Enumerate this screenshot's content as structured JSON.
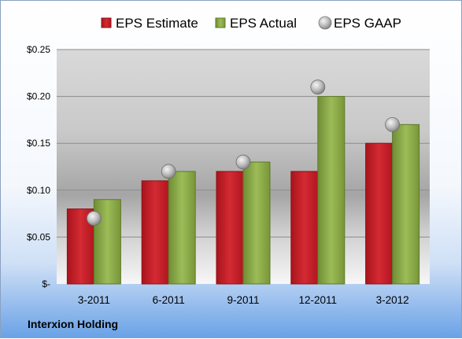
{
  "company": "Interxion Holding",
  "chart_data": {
    "type": "bar",
    "categories": [
      "3-2011",
      "6-2011",
      "9-2011",
      "12-2011",
      "3-2012"
    ],
    "series": [
      {
        "name": "EPS Estimate",
        "type": "bar",
        "color": "#c8202a",
        "values": [
          0.08,
          0.11,
          0.12,
          0.12,
          0.15
        ]
      },
      {
        "name": "EPS Actual",
        "type": "bar",
        "color": "#8eae4a",
        "values": [
          0.09,
          0.12,
          0.13,
          0.2,
          0.17
        ]
      },
      {
        "name": "EPS GAAP",
        "type": "marker",
        "color": "#b8b8b8",
        "values": [
          0.07,
          0.12,
          0.13,
          0.21,
          0.17
        ]
      }
    ],
    "ylim": [
      0,
      0.25
    ],
    "yticks": [
      {
        "value": 0,
        "label": "$-"
      },
      {
        "value": 0.05,
        "label": "$0.05"
      },
      {
        "value": 0.1,
        "label": "$0.10"
      },
      {
        "value": 0.15,
        "label": "$0.15"
      },
      {
        "value": 0.2,
        "label": "$0.20"
      },
      {
        "value": 0.25,
        "label": "$0.25"
      }
    ],
    "grid": true,
    "legend_position": "top"
  }
}
